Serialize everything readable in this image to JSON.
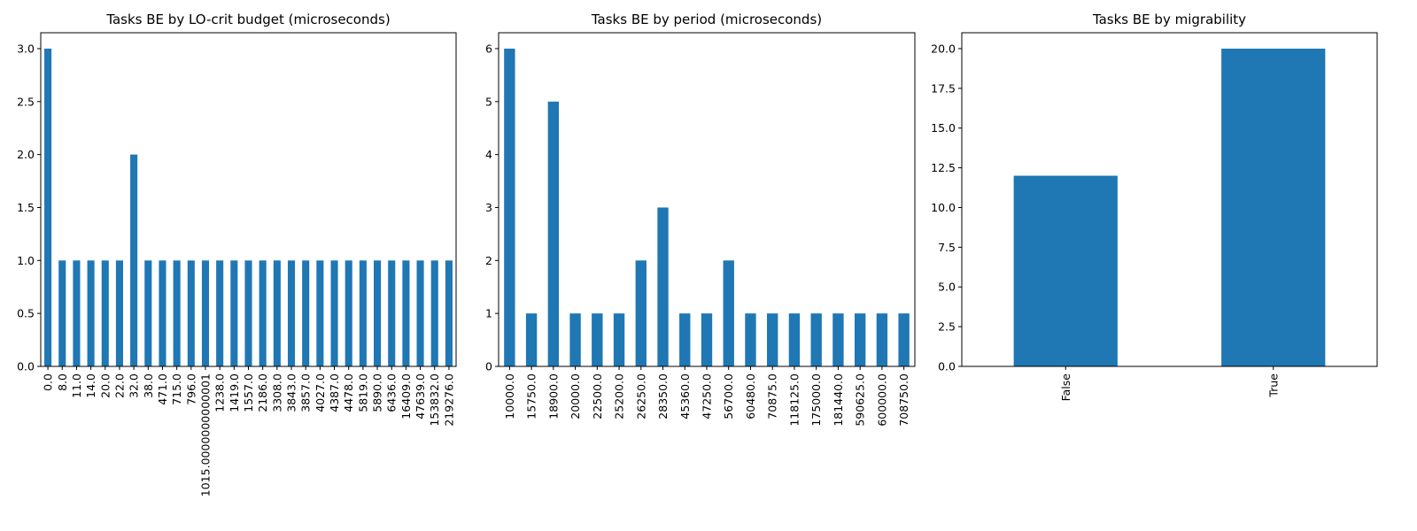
{
  "chart_data": [
    {
      "type": "bar",
      "title": "Tasks BE by LO-crit budget (microseconds)",
      "xlabel": "",
      "ylabel": "",
      "ylim": [
        0,
        3.15
      ],
      "yticks": [
        "0.0",
        "0.5",
        "1.0",
        "1.5",
        "2.0",
        "2.5",
        "3.0"
      ],
      "categories": [
        "0.0",
        "8.0",
        "11.0",
        "14.0",
        "20.0",
        "22.0",
        "32.0",
        "38.0",
        "471.0",
        "715.0",
        "796.0",
        "1015.0000000000001",
        "1238.0",
        "1419.0",
        "1557.0",
        "2186.0",
        "3308.0",
        "3843.0",
        "3857.0",
        "4027.0",
        "4387.0",
        "4478.0",
        "5819.0",
        "5890.0",
        "6436.0",
        "16409.0",
        "47639.0",
        "153832.0",
        "219276.0"
      ],
      "values": [
        3,
        1,
        1,
        1,
        1,
        1,
        2,
        1,
        1,
        1,
        1,
        1,
        1,
        1,
        1,
        1,
        1,
        1,
        1,
        1,
        1,
        1,
        1,
        1,
        1,
        1,
        1,
        1,
        1
      ],
      "color": "#1f77b4",
      "grid": false
    },
    {
      "type": "bar",
      "title": "Tasks BE by period (microseconds)",
      "xlabel": "",
      "ylabel": "",
      "ylim": [
        0,
        6.3
      ],
      "yticks": [
        "0",
        "1",
        "2",
        "3",
        "4",
        "5",
        "6"
      ],
      "categories": [
        "10000.0",
        "15750.0",
        "18900.0",
        "20000.0",
        "22500.0",
        "25200.0",
        "26250.0",
        "28350.0",
        "45360.0",
        "47250.0",
        "56700.0",
        "60480.0",
        "70875.0",
        "118125.0",
        "175000.0",
        "181440.0",
        "590625.0",
        "600000.0",
        "708750.0"
      ],
      "values": [
        6,
        1,
        5,
        1,
        1,
        1,
        2,
        3,
        1,
        1,
        2,
        1,
        1,
        1,
        1,
        1,
        1,
        1,
        1
      ],
      "color": "#1f77b4",
      "grid": false
    },
    {
      "type": "bar",
      "title": "Tasks BE by migrability",
      "xlabel": "",
      "ylabel": "",
      "ylim": [
        0,
        21
      ],
      "yticks": [
        "0.0",
        "2.5",
        "5.0",
        "7.5",
        "10.0",
        "12.5",
        "15.0",
        "17.5",
        "20.0"
      ],
      "categories": [
        "False",
        "True"
      ],
      "values": [
        12,
        20
      ],
      "color": "#1f77b4",
      "grid": false
    }
  ]
}
